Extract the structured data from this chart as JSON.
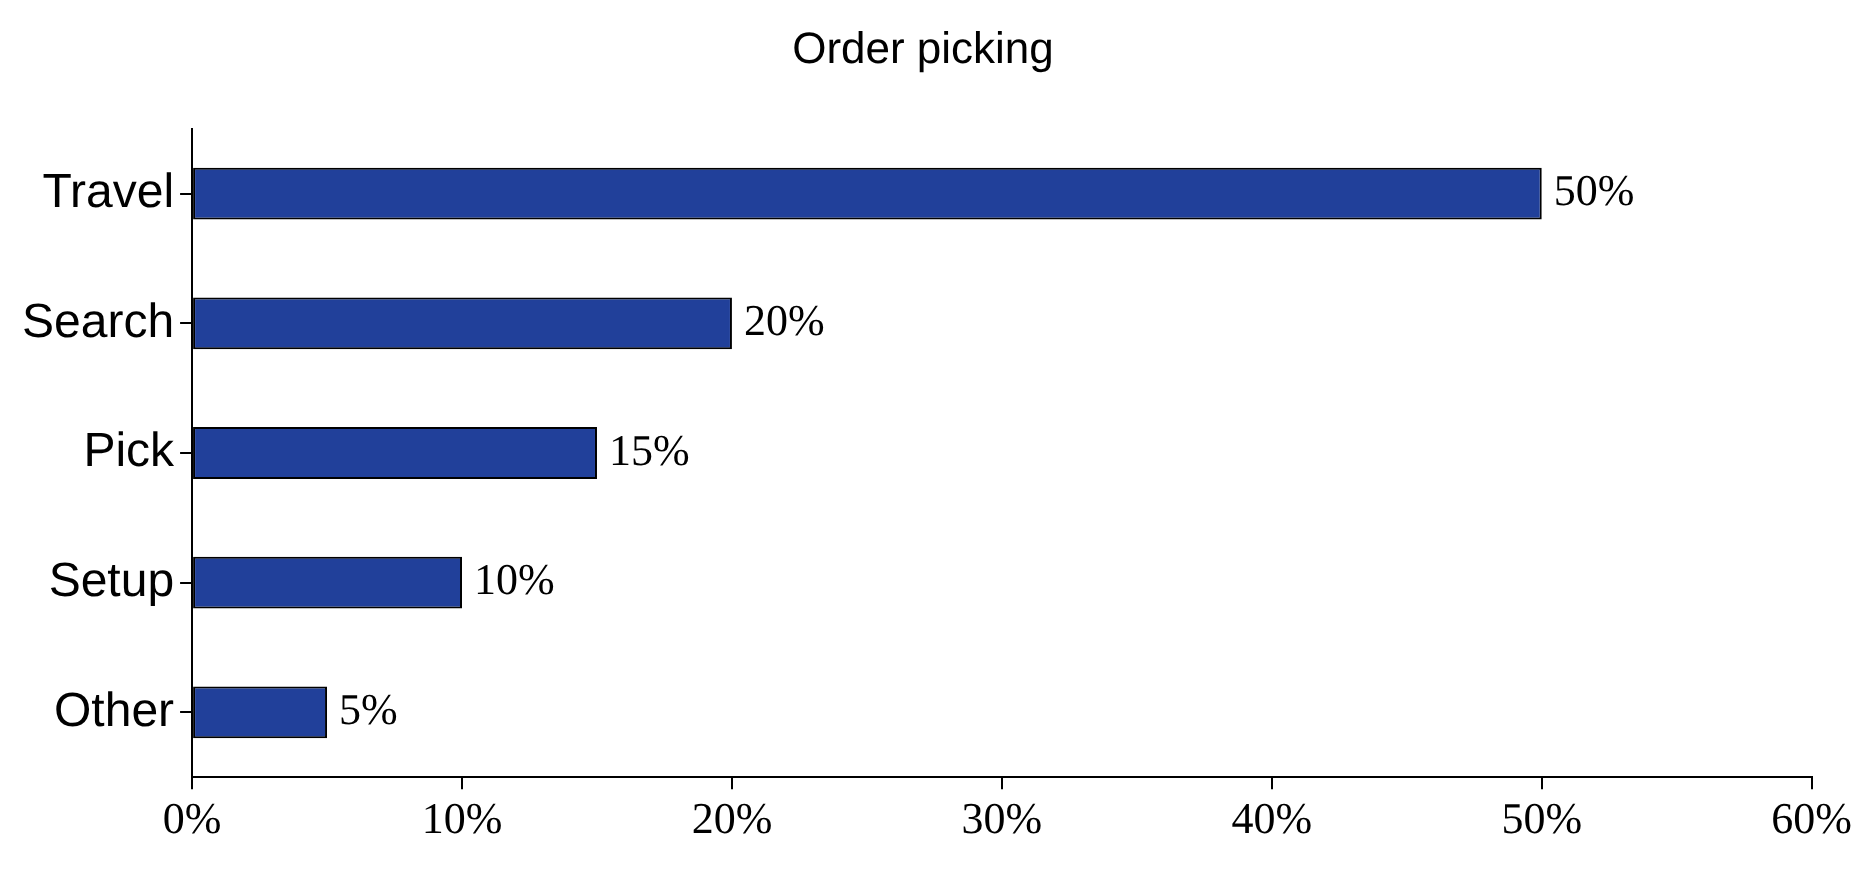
{
  "chart_data": {
    "type": "bar",
    "orientation": "horizontal",
    "title": "Order picking",
    "categories": [
      "Travel",
      "Search",
      "Pick",
      "Setup",
      "Other"
    ],
    "values": [
      50,
      20,
      15,
      10,
      5
    ],
    "color": "#21409a",
    "value_labels": [
      "50%",
      "20%",
      "15%",
      "10%",
      "5%"
    ],
    "xlim": [
      0,
      60
    ],
    "xticks": [
      {
        "value": 0,
        "label": "0%"
      },
      {
        "value": 10,
        "label": "10%"
      },
      {
        "value": 20,
        "label": "20%"
      },
      {
        "value": 30,
        "label": "30%"
      },
      {
        "value": 40,
        "label": "40%"
      },
      {
        "value": 50,
        "label": "50%"
      },
      {
        "value": 60,
        "label": "60%"
      }
    ],
    "grid": false,
    "legend": false
  }
}
